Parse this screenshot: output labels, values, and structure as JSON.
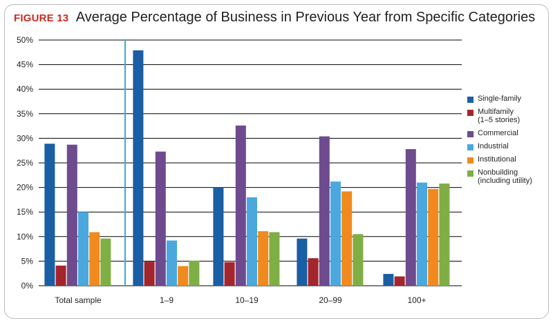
{
  "header": {
    "figure_label": "FIGURE 13",
    "title": "Average Percentage of Business in Previous Year from Specific Categories"
  },
  "colors": {
    "single_family": "#1a5ea4",
    "multifamily": "#a3262c",
    "commercial": "#6e4a8e",
    "industrial": "#4aa8de",
    "institutional": "#f08a1e",
    "nonbuilding": "#7fae45",
    "divider": "#3aa9dd",
    "grid": "#000000"
  },
  "legend": [
    {
      "label": "Single-family",
      "sub": ""
    },
    {
      "label": "Multifamily",
      "sub": "(1–5 stories)"
    },
    {
      "label": "Commercial",
      "sub": ""
    },
    {
      "label": "Industrial",
      "sub": ""
    },
    {
      "label": "Institutional",
      "sub": ""
    },
    {
      "label": "Nonbuilding",
      "sub": "(including utility)"
    }
  ],
  "chart_data": {
    "type": "bar",
    "title": "Average Percentage of Business in Previous Year from Specific Categories",
    "xlabel": "",
    "ylabel": "",
    "ylim": [
      0,
      50
    ],
    "y_ticks": [
      "0%",
      "5%",
      "10%",
      "15%",
      "20%",
      "25%",
      "30%",
      "35%",
      "40%",
      "45%",
      "50%"
    ],
    "categories": [
      "Total sample",
      "1–9",
      "10–19",
      "20–99",
      "100+"
    ],
    "grid": true,
    "legend_position": "right",
    "series": [
      {
        "name": "Single-family",
        "values": [
          28.9,
          47.9,
          20.0,
          9.6,
          2.4
        ]
      },
      {
        "name": "Multifamily (1–5 stories)",
        "values": [
          4.1,
          4.9,
          4.8,
          5.6,
          1.9
        ]
      },
      {
        "name": "Commercial",
        "values": [
          28.7,
          27.3,
          32.6,
          30.4,
          27.8
        ]
      },
      {
        "name": "Industrial",
        "values": [
          15.0,
          9.2,
          18.0,
          21.2,
          21.0
        ]
      },
      {
        "name": "Institutional",
        "values": [
          10.9,
          4.0,
          11.1,
          19.2,
          19.7
        ]
      },
      {
        "name": "Nonbuilding (including utility)",
        "values": [
          9.6,
          5.1,
          10.9,
          10.5,
          20.8
        ]
      }
    ]
  }
}
